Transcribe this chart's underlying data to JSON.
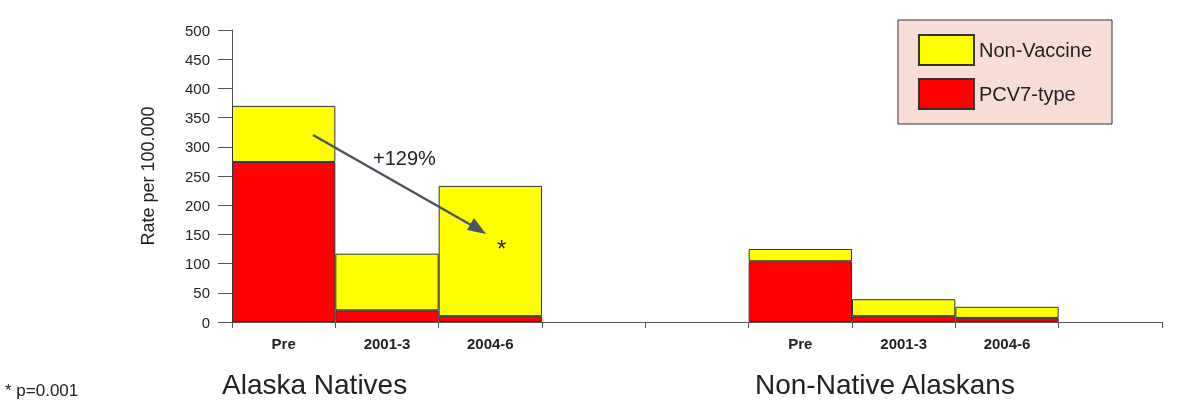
{
  "chart_data": {
    "type": "bar",
    "stacked": true,
    "ylabel": "Rate per 100.000",
    "categories": [
      "Pre",
      "2001-3",
      "2004-6",
      null,
      null,
      "Pre",
      "2001-3",
      "2004-6",
      null
    ],
    "series": [
      {
        "name": "PCV7-type",
        "color": "#ff0000",
        "values": [
          274,
          20,
          10,
          null,
          null,
          104,
          10,
          7,
          null
        ]
      },
      {
        "name": "Non-Vaccine",
        "color": "#ffff00",
        "values": [
          96,
          97,
          223,
          null,
          null,
          21,
          29,
          19,
          null
        ]
      }
    ],
    "ylim": [
      0,
      500
    ],
    "yticks": [
      0,
      50,
      100,
      150,
      200,
      250,
      300,
      350,
      400,
      450,
      500
    ],
    "grid": false,
    "legend": "top right",
    "annotations": [
      "+129%",
      "*",
      "Alaska Natives",
      "Non-Native Alaskans",
      "* p=0.001"
    ]
  }
}
